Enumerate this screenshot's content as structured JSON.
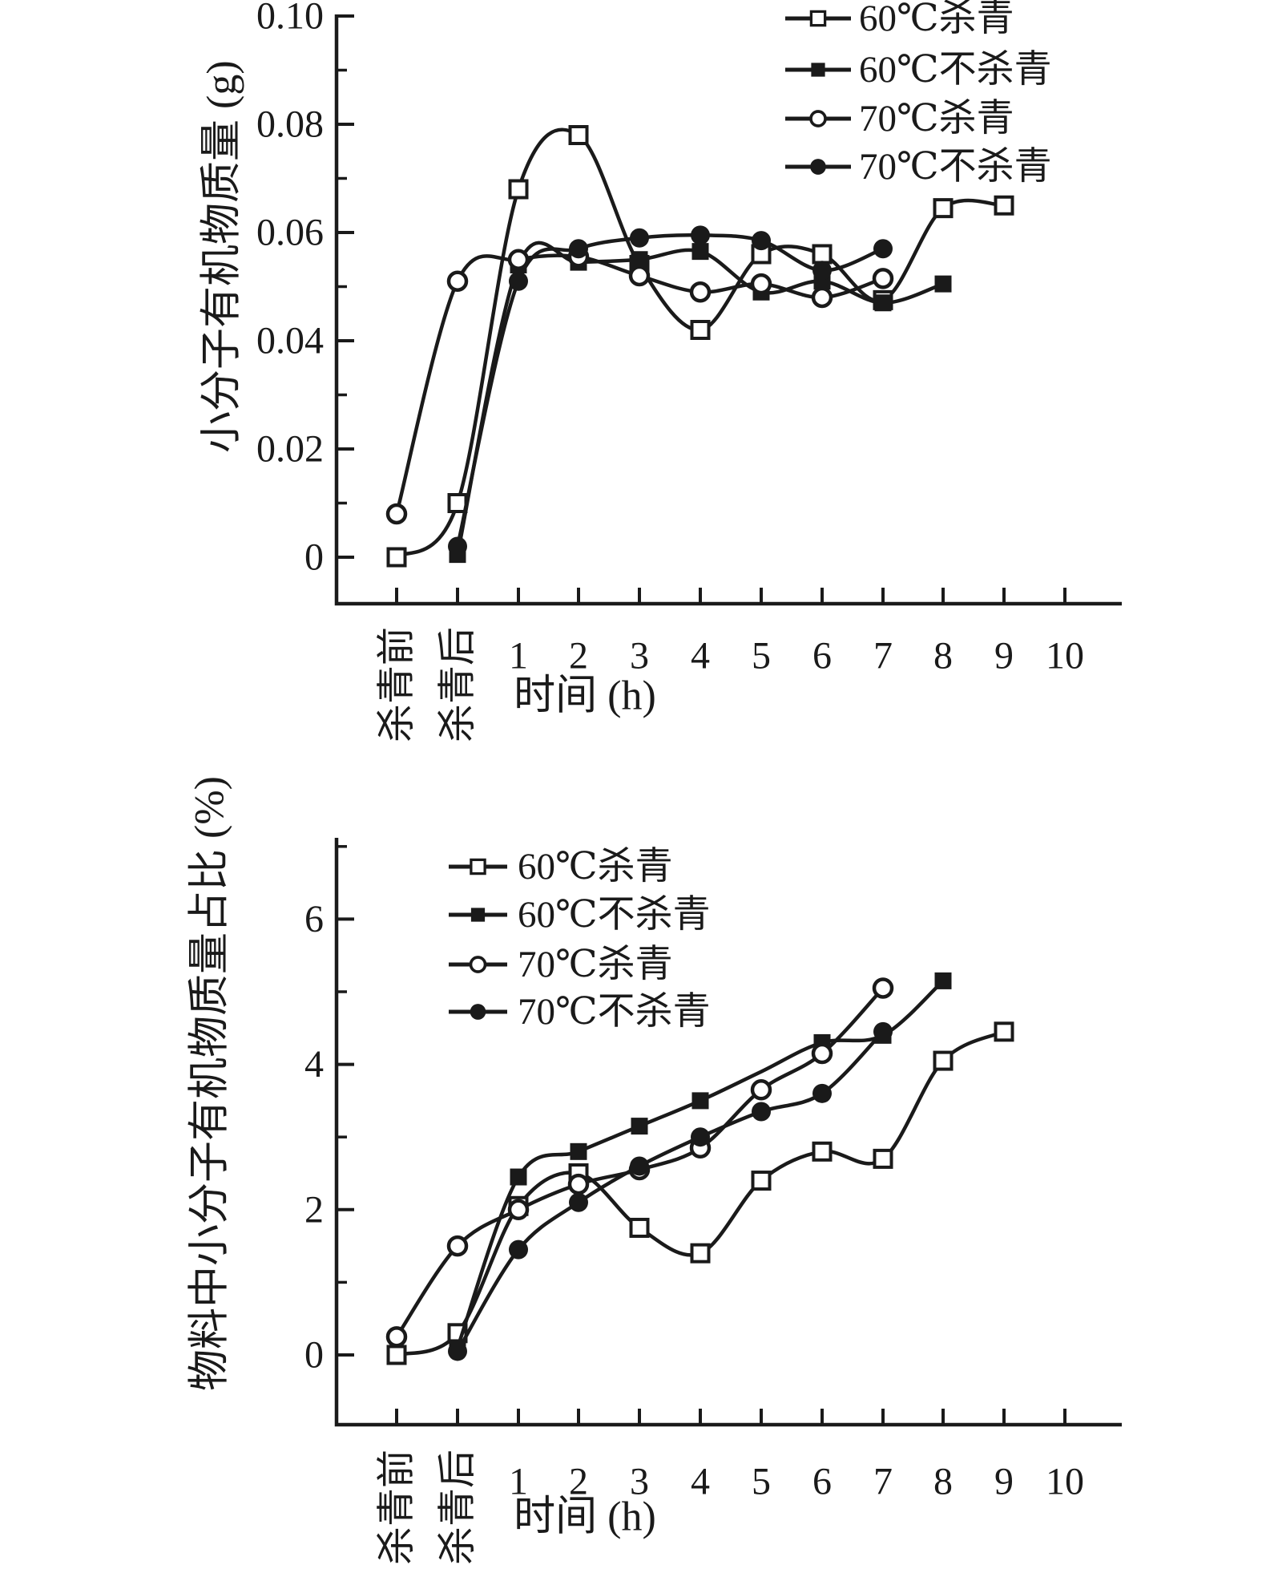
{
  "page": {
    "background": "#ffffff",
    "ink_color": "#1a1a1a",
    "description": "Two stacked scientific line charts comparing small-molecule organic matter during drying"
  },
  "chart_data": [
    {
      "type": "line",
      "title": "",
      "xlabel": "时间 (h)",
      "ylabel": "小分子有机物质量 (g)",
      "categories": [
        "杀青前",
        "杀青后",
        "1",
        "2",
        "3",
        "4",
        "5",
        "6",
        "7",
        "8",
        "9",
        "10"
      ],
      "rotated_category_count": 2,
      "ylim": [
        0,
        0.1
      ],
      "yticks": [
        0,
        0.02,
        0.04,
        0.06,
        0.08,
        0.1
      ],
      "ytick_labels": [
        "0",
        "0.02",
        "0.04",
        "0.06",
        "0.08",
        "0.10"
      ],
      "minor_ytick_step": 0.01,
      "grid": "off",
      "legend_position": "top-right-outside-plot",
      "series": [
        {
          "name": "60℃杀青",
          "marker": "open-square",
          "values": [
            0,
            0.01,
            0.068,
            0.078,
            0.054,
            0.042,
            0.056,
            0.056,
            0.0475,
            0.0645,
            0.065,
            null
          ]
        },
        {
          "name": "60℃不杀青",
          "marker": "filled-square",
          "values": [
            null,
            0.0005,
            0.054,
            0.0545,
            0.055,
            0.0565,
            0.049,
            0.051,
            0.047,
            0.0505,
            null,
            null
          ]
        },
        {
          "name": "70℃杀青",
          "marker": "open-circle",
          "values": [
            0.008,
            0.051,
            0.055,
            0.0555,
            0.052,
            0.049,
            0.0505,
            0.048,
            0.0515,
            null,
            null,
            null
          ]
        },
        {
          "name": "70℃不杀青",
          "marker": "filled-circle",
          "values": [
            null,
            0.002,
            0.051,
            0.057,
            0.059,
            0.0595,
            0.0585,
            0.053,
            0.057,
            null,
            null,
            null
          ]
        }
      ]
    },
    {
      "type": "line",
      "title": "",
      "xlabel": "时间 (h)",
      "ylabel": "物料中小分子有机物质量占比 (%)",
      "categories": [
        "杀青前",
        "杀青后",
        "1",
        "2",
        "3",
        "4",
        "5",
        "6",
        "7",
        "8",
        "9",
        "10"
      ],
      "rotated_category_count": 2,
      "ylim": [
        0,
        7
      ],
      "yticks": [
        0,
        2,
        4,
        6
      ],
      "ytick_labels": [
        "0",
        "2",
        "4",
        "6"
      ],
      "minor_ytick_step": 1,
      "grid": "off",
      "legend_position": "top-left-inside-plot",
      "series": [
        {
          "name": "60℃杀青",
          "marker": "open-square",
          "values": [
            0,
            0.3,
            2.05,
            2.5,
            1.75,
            1.4,
            2.4,
            2.8,
            2.7,
            4.05,
            4.45,
            null
          ]
        },
        {
          "name": "60℃不杀青",
          "marker": "filled-square",
          "values": [
            null,
            0.1,
            2.45,
            2.8,
            3.15,
            3.5,
            3.9,
            4.3,
            4.4,
            5.15,
            null,
            null
          ],
          "hidden_marker_indices": [
            6
          ]
        },
        {
          "name": "70℃杀青",
          "marker": "open-circle",
          "values": [
            0.25,
            1.5,
            2.0,
            2.35,
            2.55,
            2.85,
            3.65,
            4.15,
            5.05,
            null,
            null,
            null
          ]
        },
        {
          "name": "70℃不杀青",
          "marker": "filled-circle",
          "values": [
            null,
            0.05,
            1.45,
            2.1,
            2.6,
            3.0,
            3.35,
            3.6,
            4.45,
            null,
            null,
            null
          ]
        }
      ]
    }
  ]
}
